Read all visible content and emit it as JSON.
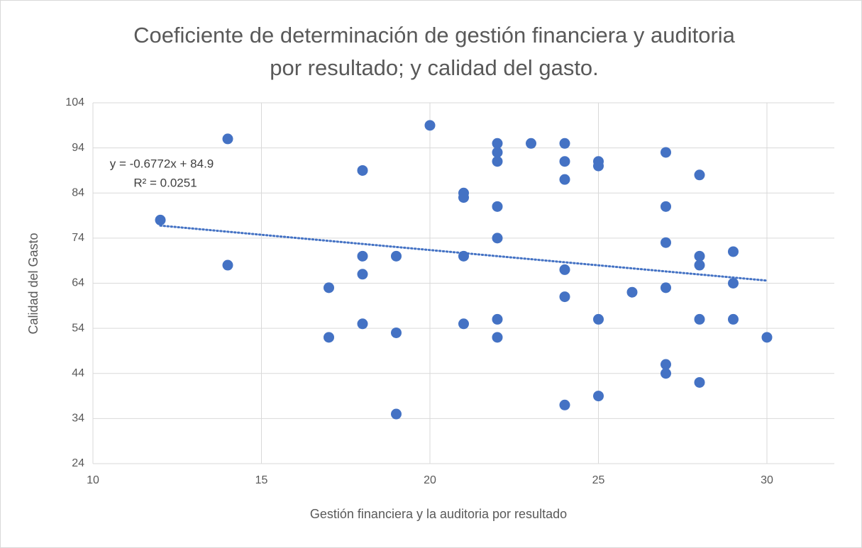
{
  "chart_data": {
    "type": "scatter",
    "title": [
      "Coeficiente de determinación de gestión financiera y auditoria",
      "por resultado; y calidad del gasto."
    ],
    "x_label": "Gestión financiera y la auditoria por resultado",
    "y_label": "Calidad del Gasto",
    "color": "#4472c4",
    "grid": true,
    "xlim": [
      10,
      32
    ],
    "xticks": [
      10,
      15,
      20,
      25,
      30
    ],
    "ylim": [
      24,
      104
    ],
    "yticks": [
      24,
      34,
      44,
      54,
      64,
      74,
      84,
      94,
      104
    ],
    "x": [
      12,
      14,
      14,
      17,
      17,
      18,
      18,
      18,
      18,
      19,
      19,
      19,
      20,
      21,
      21,
      21,
      21,
      22,
      22,
      22,
      22,
      22,
      22,
      22,
      23,
      24,
      24,
      24,
      24,
      24,
      24,
      25,
      25,
      25,
      25,
      26,
      27,
      27,
      27,
      27,
      27,
      27,
      28,
      28,
      28,
      28,
      28,
      29,
      29,
      29,
      30
    ],
    "values": [
      78,
      96,
      68,
      63,
      52,
      89,
      70,
      66,
      55,
      70,
      53,
      35,
      99,
      84,
      83,
      70,
      55,
      95,
      93,
      91,
      81,
      74,
      56,
      52,
      95,
      95,
      91,
      87,
      67,
      61,
      37,
      91,
      90,
      56,
      39,
      62,
      93,
      81,
      73,
      63,
      46,
      44,
      88,
      70,
      68,
      56,
      42,
      71,
      64,
      56,
      52
    ],
    "trendline": {
      "slope": -0.6772,
      "intercept": 84.9,
      "equation": "y = -0.6772x + 84.9",
      "r2": "R² = 0.0251"
    }
  }
}
